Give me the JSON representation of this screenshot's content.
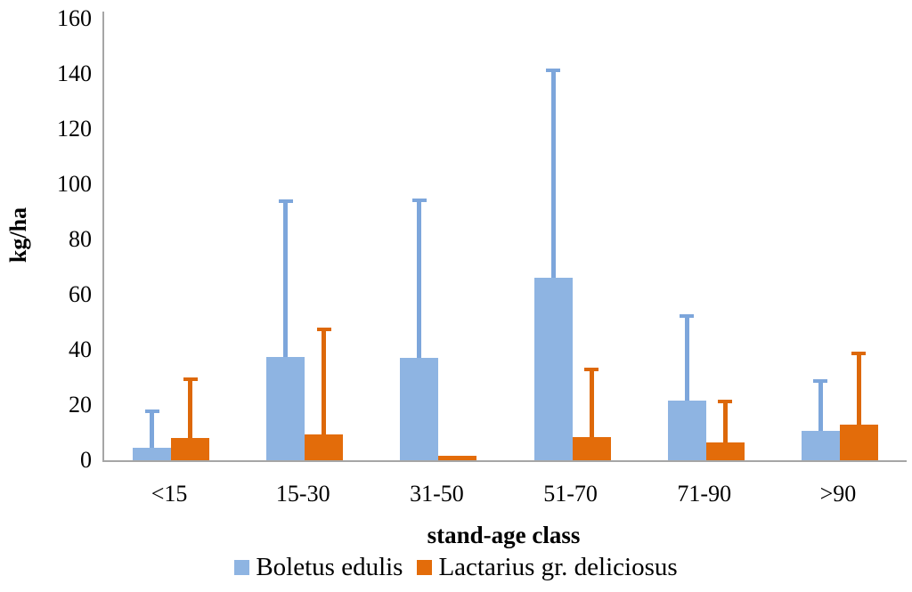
{
  "chart_data": {
    "type": "bar",
    "title": "",
    "xlabel": "stand-age class",
    "ylabel": "kg/ha",
    "ylim": [
      0,
      160
    ],
    "ytick_step": 20,
    "yticks": [
      0,
      20,
      40,
      60,
      80,
      100,
      120,
      140,
      160
    ],
    "grid": false,
    "legend_position": "bottom",
    "categories": [
      "<15",
      "15-30",
      "31-50",
      "51-70",
      "71-90",
      ">90"
    ],
    "series": [
      {
        "name": "Boletus edulis",
        "color": "#8EB4E2",
        "whisker_color": "#7DA6DB",
        "values": [
          4.5,
          37.5,
          37,
          66,
          21.5,
          10.5
        ],
        "errors_up": [
          14,
          57,
          58,
          76,
          31.5,
          19
        ]
      },
      {
        "name": "Lactarius gr. deliciosus",
        "color": "#E36C0A",
        "whisker_color": "#DD6809",
        "values": [
          8,
          9.5,
          1.5,
          8.5,
          6.5,
          13
        ],
        "errors_up": [
          22,
          38.5,
          0,
          25,
          15.5,
          26.5
        ]
      }
    ],
    "axis_color": "#A6A6A6",
    "text_color": "#000000"
  }
}
